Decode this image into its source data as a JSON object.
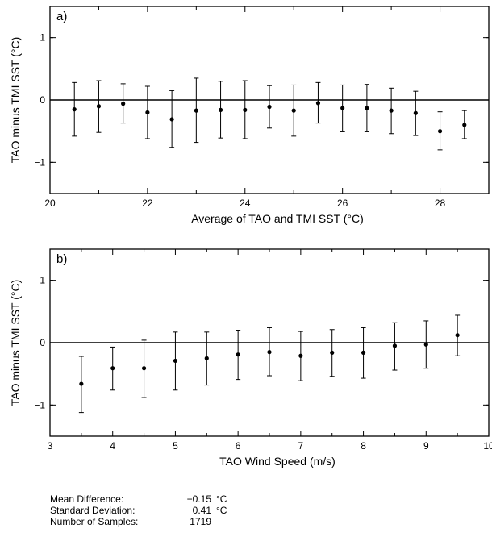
{
  "chart_data": [
    {
      "type": "scatter",
      "panel_label": "a)",
      "xlabel": "Average of TAO and TMI SST (°C)",
      "ylabel": "TAO minus TMI SST (°C)",
      "xlim": [
        20,
        29
      ],
      "ylim": [
        -1.5,
        1.5
      ],
      "x_ticks": [
        20,
        22,
        24,
        26,
        28
      ],
      "y_ticks": [
        -1,
        0,
        1
      ],
      "zero_line": 0,
      "series": [
        {
          "points": [
            {
              "x": 20.5,
              "y": -0.15,
              "err_low": -0.58,
              "err_high": 0.28
            },
            {
              "x": 21.0,
              "y": -0.1,
              "err_low": -0.52,
              "err_high": 0.31
            },
            {
              "x": 21.5,
              "y": -0.06,
              "err_low": -0.37,
              "err_high": 0.26
            },
            {
              "x": 22.0,
              "y": -0.2,
              "err_low": -0.62,
              "err_high": 0.22
            },
            {
              "x": 22.5,
              "y": -0.31,
              "err_low": -0.76,
              "err_high": 0.15
            },
            {
              "x": 23.0,
              "y": -0.17,
              "err_low": -0.68,
              "err_high": 0.35
            },
            {
              "x": 23.5,
              "y": -0.16,
              "err_low": -0.61,
              "err_high": 0.3
            },
            {
              "x": 24.0,
              "y": -0.16,
              "err_low": -0.62,
              "err_high": 0.31
            },
            {
              "x": 24.5,
              "y": -0.11,
              "err_low": -0.45,
              "err_high": 0.23
            },
            {
              "x": 25.0,
              "y": -0.17,
              "err_low": -0.58,
              "err_high": 0.24
            },
            {
              "x": 25.5,
              "y": -0.05,
              "err_low": -0.37,
              "err_high": 0.28
            },
            {
              "x": 26.0,
              "y": -0.13,
              "err_low": -0.51,
              "err_high": 0.24
            },
            {
              "x": 26.5,
              "y": -0.13,
              "err_low": -0.51,
              "err_high": 0.25
            },
            {
              "x": 27.0,
              "y": -0.17,
              "err_low": -0.54,
              "err_high": 0.19
            },
            {
              "x": 27.5,
              "y": -0.21,
              "err_low": -0.57,
              "err_high": 0.14
            },
            {
              "x": 28.0,
              "y": -0.5,
              "err_low": -0.8,
              "err_high": -0.19
            },
            {
              "x": 28.5,
              "y": -0.4,
              "err_low": -0.62,
              "err_high": -0.17
            }
          ]
        }
      ],
      "grid": false
    },
    {
      "type": "scatter",
      "panel_label": "b)",
      "xlabel": "TAO Wind Speed (m/s)",
      "ylabel": "TAO minus TMI SST (°C)",
      "xlim": [
        3,
        10
      ],
      "ylim": [
        -1.5,
        1.5
      ],
      "x_ticks": [
        3,
        4,
        5,
        6,
        7,
        8,
        9,
        10
      ],
      "y_ticks": [
        -1,
        0,
        1
      ],
      "zero_line": 0,
      "series": [
        {
          "points": [
            {
              "x": 3.5,
              "y": -0.66,
              "err_low": -1.12,
              "err_high": -0.22
            },
            {
              "x": 4.0,
              "y": -0.41,
              "err_low": -0.76,
              "err_high": -0.07
            },
            {
              "x": 4.5,
              "y": -0.41,
              "err_low": -0.88,
              "err_high": 0.04
            },
            {
              "x": 5.0,
              "y": -0.29,
              "err_low": -0.76,
              "err_high": 0.17
            },
            {
              "x": 5.5,
              "y": -0.25,
              "err_low": -0.68,
              "err_high": 0.17
            },
            {
              "x": 6.0,
              "y": -0.19,
              "err_low": -0.59,
              "err_high": 0.2
            },
            {
              "x": 6.5,
              "y": -0.15,
              "err_low": -0.53,
              "err_high": 0.24
            },
            {
              "x": 7.0,
              "y": -0.21,
              "err_low": -0.61,
              "err_high": 0.18
            },
            {
              "x": 7.5,
              "y": -0.16,
              "err_low": -0.54,
              "err_high": 0.21
            },
            {
              "x": 8.0,
              "y": -0.16,
              "err_low": -0.57,
              "err_high": 0.24
            },
            {
              "x": 8.5,
              "y": -0.05,
              "err_low": -0.44,
              "err_high": 0.32
            },
            {
              "x": 9.0,
              "y": -0.03,
              "err_low": -0.41,
              "err_high": 0.35
            },
            {
              "x": 9.5,
              "y": 0.12,
              "err_low": -0.21,
              "err_high": 0.44
            }
          ]
        }
      ],
      "grid": false
    }
  ],
  "stats": [
    {
      "label": "Mean Difference:",
      "value": "−0.15",
      "unit": "°C"
    },
    {
      "label": "Standard Deviation:",
      "value": "0.41",
      "unit": "°C"
    },
    {
      "label": "Number of Samples:",
      "value": "1719",
      "unit": ""
    }
  ]
}
